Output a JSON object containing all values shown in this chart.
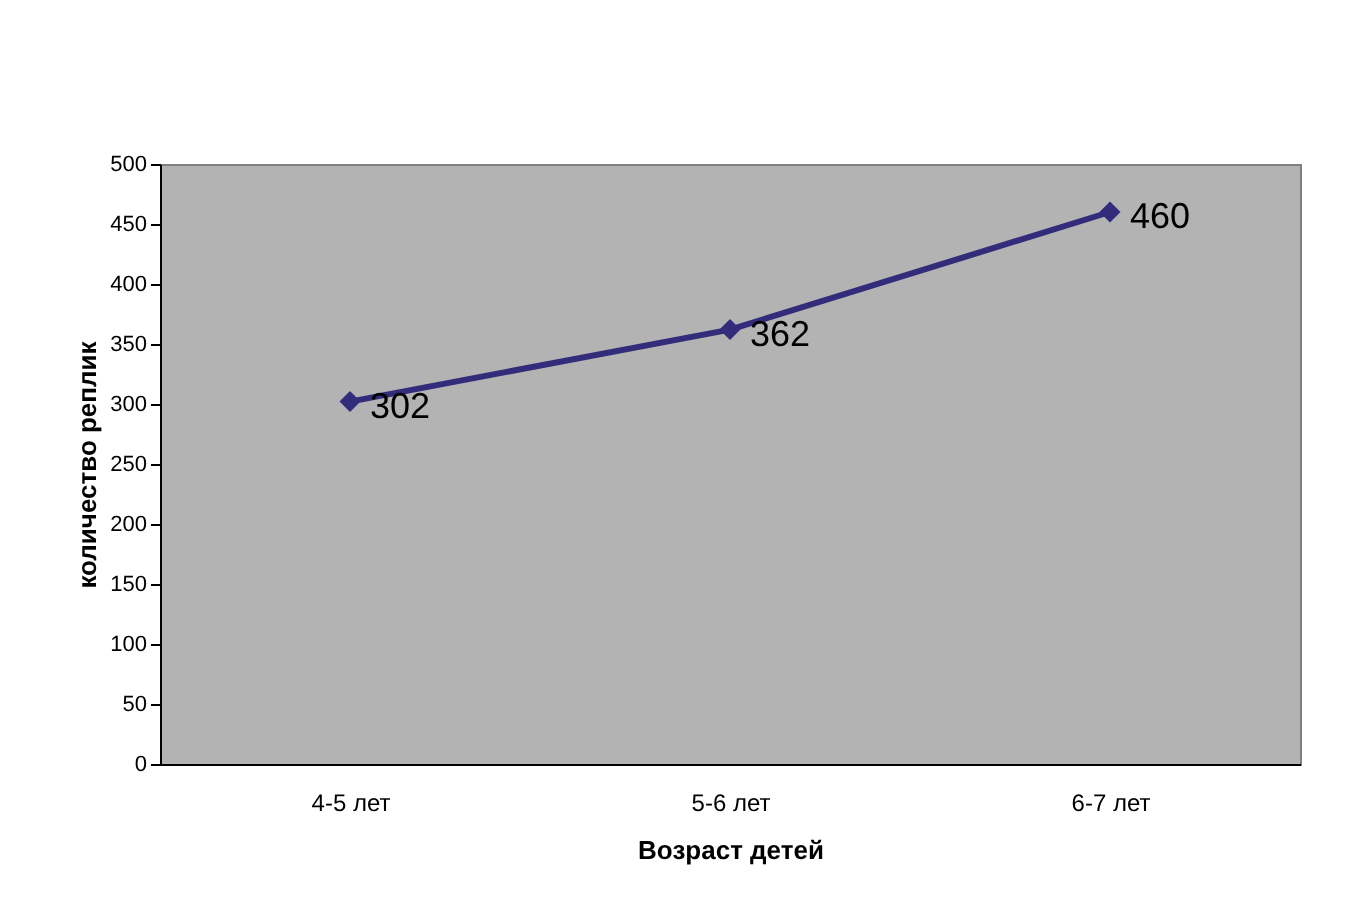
{
  "chart_data": {
    "type": "line",
    "xlabel": "Возраст детей",
    "ylabel": "количество реплик",
    "categories": [
      "4-5 лет",
      "5-6 лет",
      "6-7 лет"
    ],
    "series": [
      {
        "color": "#332c7a",
        "values": [
          302,
          362,
          460
        ]
      }
    ],
    "ylim": [
      0,
      500
    ],
    "yticks": [
      0,
      50,
      100,
      150,
      200,
      250,
      300,
      350,
      400,
      450,
      500
    ],
    "marker": "diamond",
    "data_labels": true,
    "grid": false,
    "legend": false
  }
}
